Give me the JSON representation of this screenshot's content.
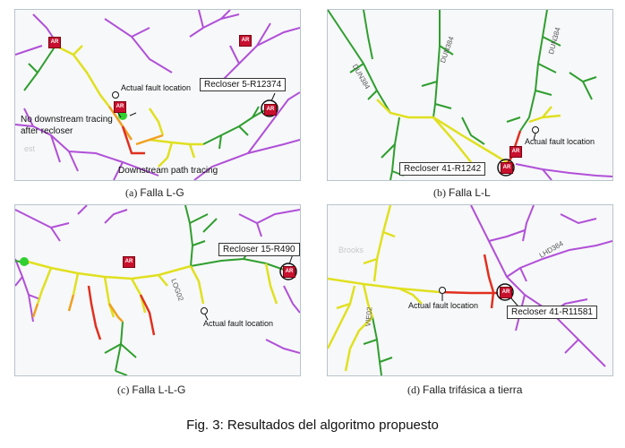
{
  "panels": {
    "a": {
      "caption_letter": "(a)",
      "caption_name": "Falla L-G",
      "callout": "Recloser 5-R12374",
      "fault_label": "Actual fault location",
      "no_tracing_label": "No downstream tracing\nafter recloser",
      "path_label": "Downstream path tracing",
      "bg_label": "est",
      "ar_text": "AR"
    },
    "b": {
      "caption_letter": "(b)",
      "caption_name": "Falla L-L",
      "callout": "Recloser 41-R1242",
      "fault_label": "Actual fault location",
      "road_labels": [
        "DUN384",
        "DUN384",
        "DUN384"
      ],
      "ar_text": "AR"
    },
    "c": {
      "caption_letter": "(c)",
      "caption_name": "Falla L-L-G",
      "callout": "Recloser 15-R490",
      "fault_label": "Actual fault location",
      "road_label": "LOG02",
      "ar_text": "AR"
    },
    "d": {
      "caption_letter": "(d)",
      "caption_name": "Falla trifásica a tierra",
      "callout": "Recloser 41-R11581",
      "fault_label": "Actual fault location",
      "road_labels": [
        "LHD384",
        "VIE02"
      ],
      "bg_label": "Brooks",
      "ar_text": "AR"
    }
  },
  "figure_title": "Fig. 3: Resultados del algoritmo propuesto",
  "colors": {
    "purple": "#b050d8",
    "green": "#2f9e2f",
    "yellow": "#e0e020",
    "orange": "#f0a020",
    "red": "#e03020",
    "recloser_red": "#c8102e"
  }
}
